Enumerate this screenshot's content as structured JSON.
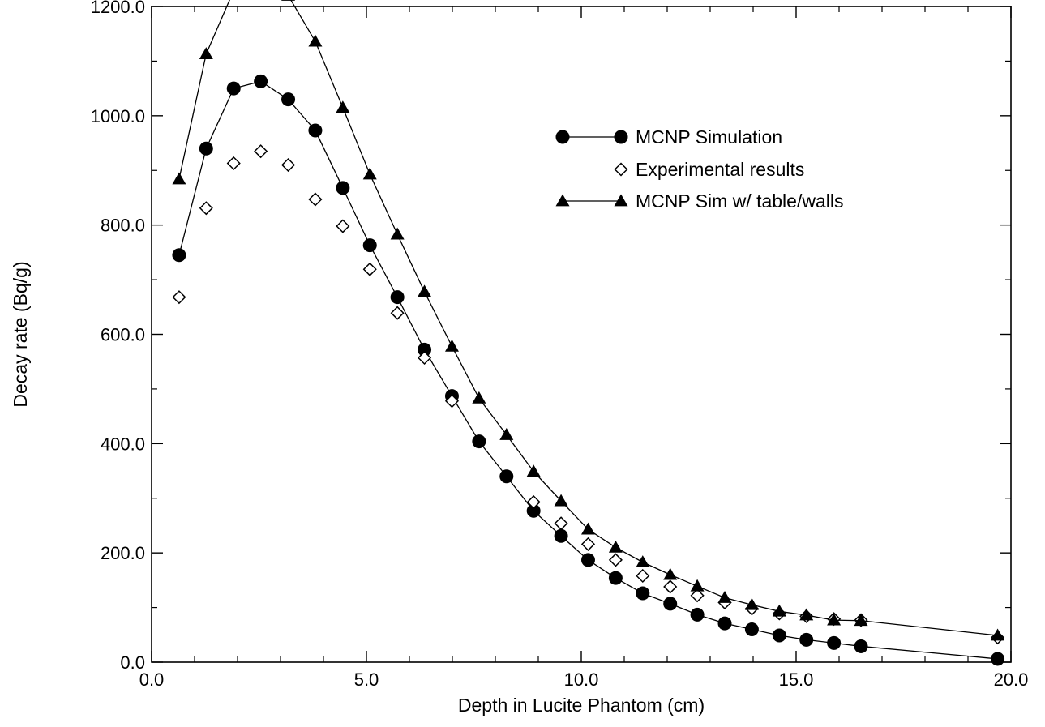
{
  "chart_data": {
    "type": "scatter",
    "title": "",
    "xlabel": "Depth in Lucite Phantom (cm)",
    "ylabel": "Decay rate (Bq/g)",
    "xlim": [
      0.0,
      20.0
    ],
    "ylim": [
      0.0,
      1200.0
    ],
    "x_ticks": [
      "0.0",
      "5.0",
      "10.0",
      "15.0",
      "20.0"
    ],
    "y_ticks": [
      "0.0",
      "200.0",
      "400.0",
      "600.0",
      "800.0",
      "1000.0",
      "1200.0"
    ],
    "grid": false,
    "legend_position": "upper-right",
    "series": [
      {
        "name": "MCNP Simulation",
        "marker": "filled-circle",
        "line": true,
        "color": "#000000",
        "points": [
          [
            0.64,
            745
          ],
          [
            1.27,
            940
          ],
          [
            1.91,
            1050
          ],
          [
            2.54,
            1063
          ],
          [
            3.18,
            1030
          ],
          [
            3.81,
            973
          ],
          [
            4.45,
            868
          ],
          [
            5.08,
            763
          ],
          [
            5.72,
            668
          ],
          [
            6.35,
            572
          ],
          [
            6.99,
            487
          ],
          [
            7.62,
            404
          ],
          [
            8.26,
            340
          ],
          [
            8.89,
            277
          ],
          [
            9.53,
            231
          ],
          [
            10.16,
            187
          ],
          [
            10.8,
            154
          ],
          [
            11.43,
            126
          ],
          [
            12.07,
            107
          ],
          [
            12.7,
            87
          ],
          [
            13.34,
            71
          ],
          [
            13.97,
            60
          ],
          [
            14.61,
            49
          ],
          [
            15.24,
            41
          ],
          [
            15.88,
            35
          ],
          [
            16.51,
            29
          ],
          [
            19.69,
            6
          ]
        ]
      },
      {
        "name": "Experimental results",
        "marker": "open-diamond",
        "line": false,
        "color": "#000000",
        "points": [
          [
            0.64,
            668
          ],
          [
            1.27,
            831
          ],
          [
            1.91,
            913
          ],
          [
            2.54,
            935
          ],
          [
            3.18,
            910
          ],
          [
            3.81,
            847
          ],
          [
            4.45,
            798
          ],
          [
            5.08,
            719
          ],
          [
            5.72,
            639
          ],
          [
            6.35,
            557
          ],
          [
            6.99,
            478
          ],
          [
            8.89,
            293
          ],
          [
            9.53,
            254
          ],
          [
            10.16,
            216
          ],
          [
            10.8,
            187
          ],
          [
            11.43,
            158
          ],
          [
            12.07,
            138
          ],
          [
            12.7,
            122
          ],
          [
            13.34,
            109
          ],
          [
            13.97,
            98
          ],
          [
            14.61,
            89
          ],
          [
            15.24,
            84
          ],
          [
            15.88,
            79
          ],
          [
            16.51,
            77
          ],
          [
            19.69,
            45
          ]
        ]
      },
      {
        "name": "MCNP Sim w/ table/walls",
        "marker": "filled-triangle",
        "line": true,
        "color": "#000000",
        "points": [
          [
            0.64,
            884
          ],
          [
            1.27,
            1113
          ],
          [
            1.91,
            1229
          ],
          [
            2.54,
            1231
          ],
          [
            3.18,
            1220
          ],
          [
            3.81,
            1136
          ],
          [
            4.45,
            1015
          ],
          [
            5.08,
            893
          ],
          [
            5.72,
            783
          ],
          [
            6.35,
            678
          ],
          [
            6.99,
            578
          ],
          [
            7.62,
            483
          ],
          [
            8.26,
            416
          ],
          [
            8.89,
            349
          ],
          [
            9.53,
            295
          ],
          [
            10.16,
            243
          ],
          [
            10.8,
            210
          ],
          [
            11.43,
            183
          ],
          [
            12.07,
            160
          ],
          [
            12.7,
            139
          ],
          [
            13.34,
            118
          ],
          [
            13.97,
            105
          ],
          [
            14.61,
            93
          ],
          [
            15.24,
            86
          ],
          [
            15.88,
            77
          ],
          [
            16.51,
            76
          ],
          [
            19.69,
            49
          ]
        ]
      }
    ]
  }
}
